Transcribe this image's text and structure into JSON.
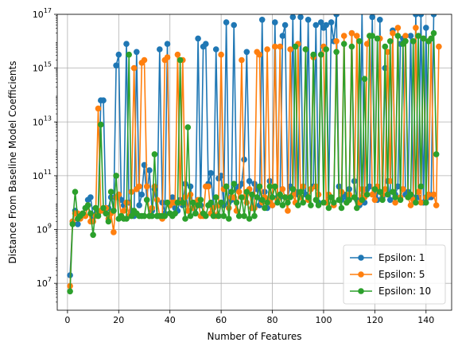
{
  "chart_data": {
    "type": "line",
    "title": "",
    "xlabel": "Number of Features",
    "ylabel": "Distance From Baseline Model Coefficients",
    "xlim": [
      -4,
      150
    ],
    "ylim": [
      1000000.0,
      1e+17
    ],
    "yscale": "log",
    "grid": true,
    "legend_position": "lower-right",
    "x_ticks": [
      0,
      20,
      40,
      60,
      80,
      100,
      120,
      140
    ],
    "y_ticks": [
      {
        "value": 10000000.0,
        "base": "10",
        "exp": "7"
      },
      {
        "value": 1000000000.0,
        "base": "10",
        "exp": "9"
      },
      {
        "value": 100000000000.0,
        "base": "10",
        "exp": "11"
      },
      {
        "value": 10000000000000.0,
        "base": "10",
        "exp": "13"
      },
      {
        "value": 1000000000000000.0,
        "base": "10",
        "exp": "15"
      },
      {
        "value": 1e+17,
        "base": "10",
        "exp": "17"
      }
    ],
    "series": [
      {
        "name": "Epsilon: 1",
        "color": "#1f77b4",
        "log10_values": [
          7.3,
          9.3,
          9.7,
          9.2,
          9.5,
          9.6,
          9.8,
          10.1,
          10.2,
          9.5,
          9.8,
          9.6,
          13.8,
          13.8,
          9.6,
          9.8,
          10.2,
          9.7,
          15.1,
          15.5,
          10.1,
          9.9,
          15.9,
          10.0,
          9.7,
          9.5,
          15.6,
          9.9,
          10.3,
          11.4,
          10.1,
          11.2,
          9.7,
          10.5,
          9.5,
          15.7,
          10.0,
          9.6,
          15.9,
          9.9,
          10.2,
          9.8,
          9.7,
          10.1,
          9.9,
          10.7,
          9.7,
          10.6,
          9.8,
          9.6,
          16.1,
          9.9,
          15.8,
          15.9,
          10.7,
          11.1,
          9.8,
          15.7,
          10.9,
          11.0,
          9.9,
          16.7,
          10.0,
          10.1,
          16.6,
          10.5,
          10.6,
          10.7,
          11.6,
          15.6,
          10.8,
          9.8,
          10.7,
          10.5,
          9.9,
          16.8,
          10.4,
          9.8,
          10.8,
          9.9,
          16.7,
          10.2,
          10.2,
          16.2,
          16.6,
          10.2,
          10.6,
          16.9,
          10.4,
          10.3,
          16.9,
          10.6,
          10.3,
          16.8,
          10.5,
          10.6,
          16.6,
          10.0,
          16.7,
          16.5,
          16.6,
          10.2,
          16.7,
          16.0,
          17.0,
          10.6,
          10.1,
          10.3,
          10.2,
          10.5,
          16.3,
          10.8,
          10.1,
          9.9,
          17.1,
          10.0,
          10.5,
          10.6,
          16.9,
          10.3,
          10.1,
          16.8,
          10.2,
          15.0,
          10.8,
          10.1,
          16.4,
          10.3,
          10.6,
          15.9,
          16.1,
          10.3,
          10.4,
          16.2,
          10.2,
          17.0,
          10.2,
          17.0,
          10.0,
          16.5,
          10.2,
          10.2,
          17.0,
          17.4
        ],
        "x_start": 1
      },
      {
        "name": "Epsilon: 5",
        "color": "#ff7f0e",
        "log10_values": [
          6.9,
          9.3,
          9.6,
          9.6,
          9.4,
          9.6,
          9.5,
          9.9,
          9.3,
          9.3,
          9.5,
          13.5,
          9.7,
          9.7,
          9.8,
          9.4,
          9.6,
          8.9,
          10.2,
          10.3,
          9.5,
          9.7,
          10.0,
          9.5,
          10.4,
          15.0,
          10.5,
          10.6,
          15.2,
          15.3,
          10.6,
          9.5,
          9.8,
          10.6,
          10.1,
          9.5,
          9.4,
          15.3,
          15.4,
          9.9,
          10.0,
          10.0,
          15.5,
          10.0,
          15.3,
          10.2,
          9.7,
          10.3,
          9.8,
          10.0,
          10.1,
          9.5,
          9.5,
          10.6,
          10.6,
          9.6,
          9.8,
          9.5,
          9.9,
          15.5,
          10.5,
          10.6,
          9.8,
          10.2,
          10.2,
          9.7,
          10.4,
          15.3,
          10.2,
          10.0,
          10.5,
          9.8,
          9.8,
          15.6,
          15.5,
          10.0,
          10.2,
          15.7,
          10.1,
          9.9,
          15.8,
          10.1,
          15.8,
          10.5,
          10.2,
          9.7,
          15.7,
          10.3,
          10.0,
          15.9,
          10.2,
          10.6,
          15.7,
          10.1,
          10.5,
          15.4,
          10.6,
          10.3,
          15.5,
          15.8,
          10.0,
          10.3,
          10.2,
          9.9,
          16.0,
          10.1,
          10.4,
          16.2,
          10.0,
          10.3,
          16.3,
          10.2,
          16.2,
          10.0,
          10.5,
          10.2,
          15.9,
          16.2,
          10.3,
          10.1,
          10.6,
          16.1,
          10.3,
          10.5,
          15.6,
          10.8,
          16.3,
          10.0,
          16.5,
          10.2,
          10.5,
          16.2,
          10.2,
          9.9,
          10.1,
          16.5,
          10.4,
          10.0,
          16.1,
          10.2,
          10.3,
          16.1,
          10.3,
          9.9,
          15.8
        ],
        "x_start": 1
      },
      {
        "name": "Epsilon: 10",
        "color": "#2ca02c",
        "log10_values": [
          6.7,
          9.2,
          10.4,
          9.4,
          9.5,
          9.6,
          9.8,
          9.9,
          9.6,
          8.8,
          9.8,
          9.5,
          12.9,
          9.8,
          9.6,
          9.3,
          10.4,
          9.7,
          11.0,
          9.4,
          9.5,
          9.4,
          9.4,
          15.5,
          9.5,
          9.7,
          9.6,
          9.5,
          9.5,
          9.5,
          10.1,
          9.5,
          9.5,
          11.8,
          9.5,
          9.5,
          9.5,
          9.5,
          10.0,
          9.6,
          9.5,
          9.6,
          10.0,
          15.3,
          10.0,
          9.4,
          12.8,
          9.5,
          10.0,
          9.6,
          9.9,
          10.1,
          9.6,
          9.5,
          9.9,
          10.0,
          9.5,
          10.2,
          9.5,
          10.0,
          9.5,
          10.6,
          9.4,
          10.4,
          10.7,
          10.0,
          9.5,
          10.2,
          9.5,
          10.4,
          9.4,
          10.3,
          9.5,
          10.2,
          10.6,
          10.1,
          9.8,
          10.0,
          10.6,
          10.2,
          10.6,
          10.0,
          10.3,
          9.9,
          10.2,
          10.0,
          10.2,
          10.5,
          15.8,
          9.9,
          10.4,
          10.0,
          15.7,
          10.2,
          9.9,
          15.5,
          10.1,
          9.9,
          15.5,
          10.0,
          15.7,
          9.8,
          10.2,
          10.0,
          15.6,
          10.1,
          9.8,
          15.9,
          10.0,
          10.1,
          15.8,
          10.2,
          9.8,
          16.0,
          10.1,
          14.6,
          10.3,
          16.2,
          16.2,
          10.5,
          16.1,
          10.4,
          10.1,
          15.8,
          10.3,
          16.0,
          10.4,
          10.2,
          16.2,
          10.1,
          15.9,
          16.0,
          10.2,
          10.3,
          16.0,
          10.0,
          16.2,
          10.6,
          16.1,
          10.0,
          16.0,
          16.1,
          16.3,
          11.8
        ],
        "x_start": 1
      }
    ]
  }
}
